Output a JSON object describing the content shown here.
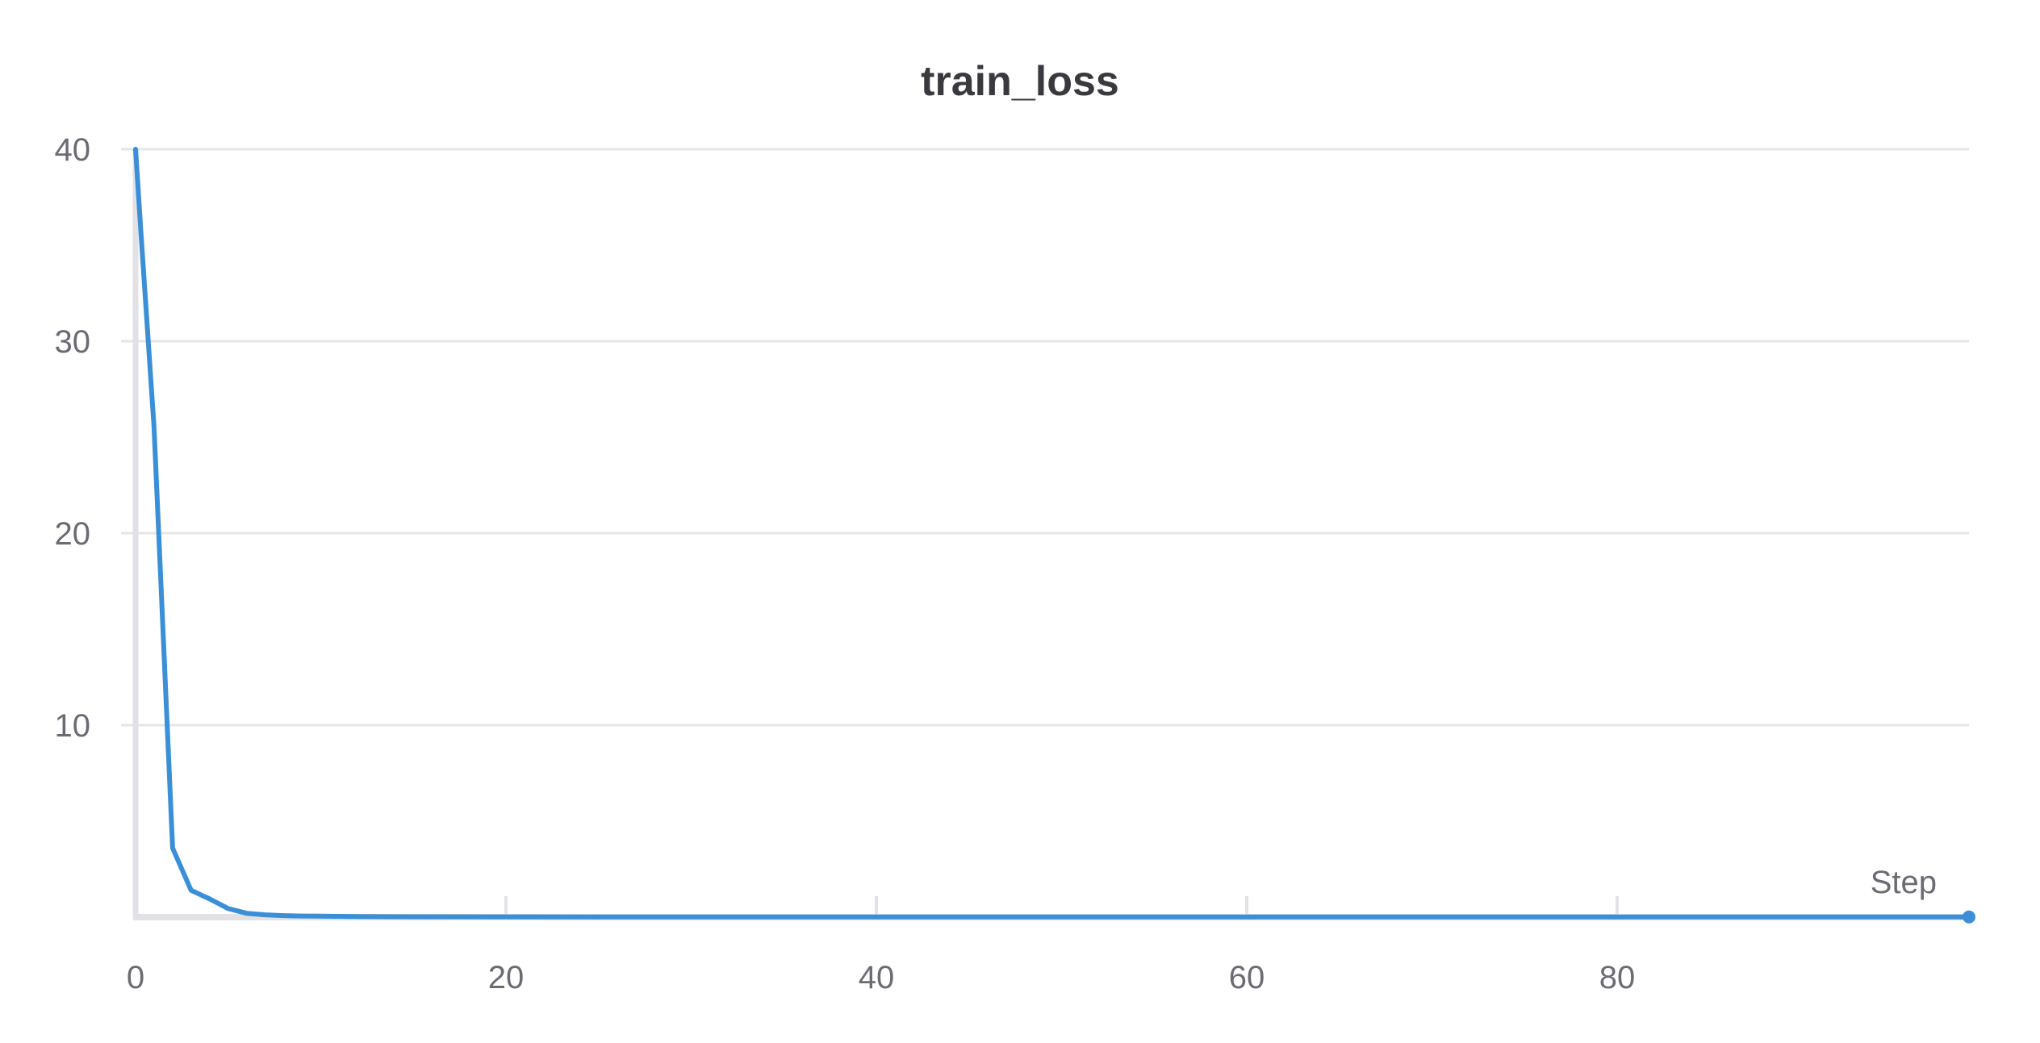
{
  "chart_data": {
    "type": "line",
    "title": "train_loss",
    "xlabel": "Step",
    "ylabel": "",
    "xlim": [
      0,
      99
    ],
    "ylim": [
      0,
      40
    ],
    "x_ticks": [
      0,
      20,
      40,
      60,
      80
    ],
    "y_ticks": [
      10,
      20,
      30,
      40
    ],
    "grid": true,
    "series": [
      {
        "color": "#3a8fd6",
        "x": [
          0,
          0.3,
          1,
          2,
          3,
          4,
          5,
          6,
          7,
          8,
          9,
          10,
          12,
          15,
          20,
          30,
          40,
          50,
          60,
          70,
          80,
          90,
          99
        ],
        "y": [
          40,
          35.5,
          25.5,
          3.6,
          1.4,
          0.95,
          0.45,
          0.2,
          0.12,
          0.08,
          0.06,
          0.05,
          0.03,
          0.02,
          0.015,
          0.01,
          0.01,
          0.01,
          0.01,
          0.01,
          0.01,
          0.01,
          0.01
        ]
      }
    ]
  }
}
